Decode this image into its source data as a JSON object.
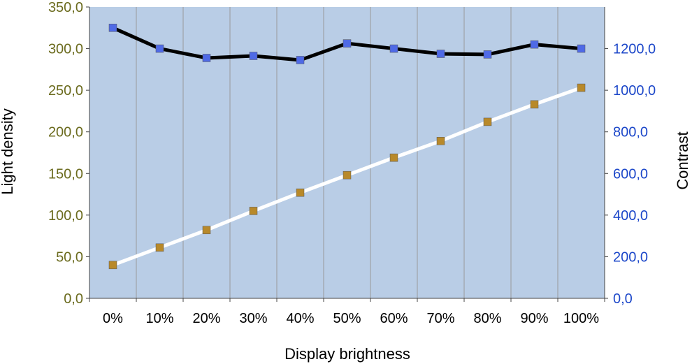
{
  "chart_data": {
    "type": "line",
    "xlabel": "Display brightness",
    "ylabel_left": "Light density",
    "ylabel_right": "Contrast",
    "categories": [
      "0%",
      "10%",
      "20%",
      "30%",
      "40%",
      "50%",
      "60%",
      "70%",
      "80%",
      "90%",
      "100%"
    ],
    "ylim_left": [
      0,
      350
    ],
    "yticks_left": [
      "0,0",
      "50,0",
      "100,0",
      "150,0",
      "200,0",
      "250,0",
      "300,0",
      "350,0"
    ],
    "ylim_right": [
      0,
      1200
    ],
    "yticks_right": [
      "0,0",
      "200,0",
      "400,0",
      "600,0",
      "800,0",
      "1000,0",
      "1200,0"
    ],
    "grid": "vertical",
    "series": [
      {
        "axis": "right",
        "line_color": "#000000",
        "marker_color": "#4f6ae6",
        "values": [
          1300,
          1200,
          1155,
          1165,
          1145,
          1225,
          1200,
          1175,
          1172,
          1220,
          1200
        ]
      },
      {
        "axis": "left",
        "line_color": "#ffffff",
        "marker_color": "#b8892a",
        "values": [
          40,
          61,
          82,
          105,
          127,
          148,
          169,
          189,
          212,
          233,
          253
        ]
      }
    ],
    "colors": {
      "plot_background": "#b9cde6",
      "gridline": "#999999",
      "left_tick_text": "#6b6b1e",
      "right_tick_text": "#1c47c9"
    }
  }
}
